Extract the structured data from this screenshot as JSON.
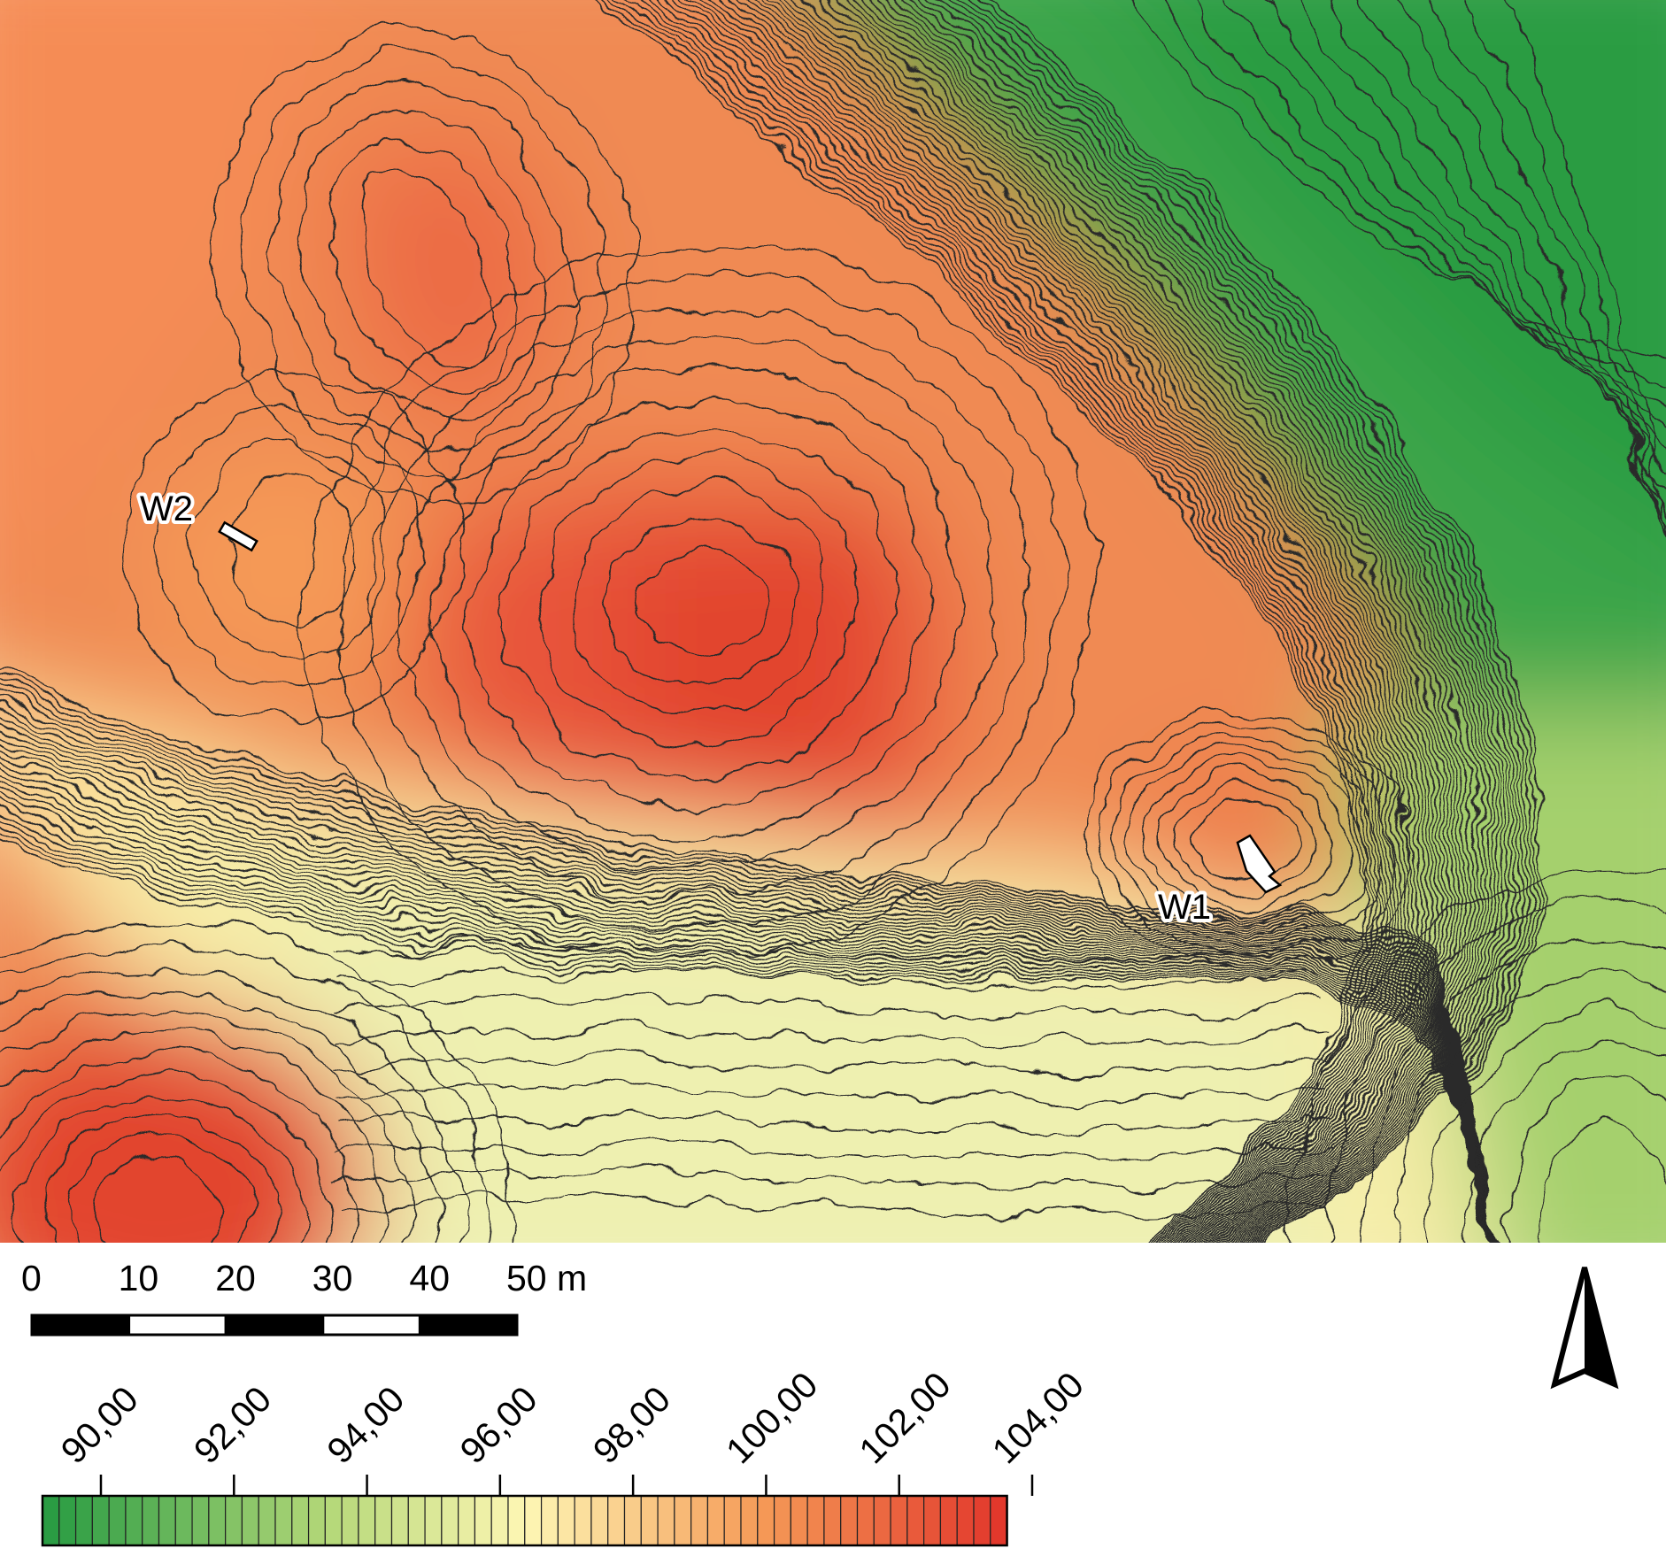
{
  "map": {
    "sites": [
      {
        "id": "w1",
        "label": "W1"
      },
      {
        "id": "w2",
        "label": "W2"
      }
    ]
  },
  "scale_bar": {
    "labels": [
      "0",
      "10",
      "20",
      "30",
      "40",
      "50 m"
    ],
    "segments_m": [
      0,
      10,
      20,
      30,
      40,
      50
    ]
  },
  "north_arrow": {
    "icon": "north-arrow-icon"
  },
  "elevation_legend": {
    "min": 90,
    "max": 104,
    "step": 0.25,
    "tick_labels": [
      "90,00",
      "92,00",
      "94,00",
      "96,00",
      "98,00",
      "100,00",
      "102,00",
      "104,00"
    ],
    "tick_values": [
      90,
      92,
      94,
      96,
      98,
      100,
      102,
      104
    ],
    "colors": {
      "low": "#2a9c43",
      "mid_low": "#b7d97a",
      "mid": "#fdf6b4",
      "mid_high": "#f59a57",
      "high": "#e2382c"
    }
  }
}
